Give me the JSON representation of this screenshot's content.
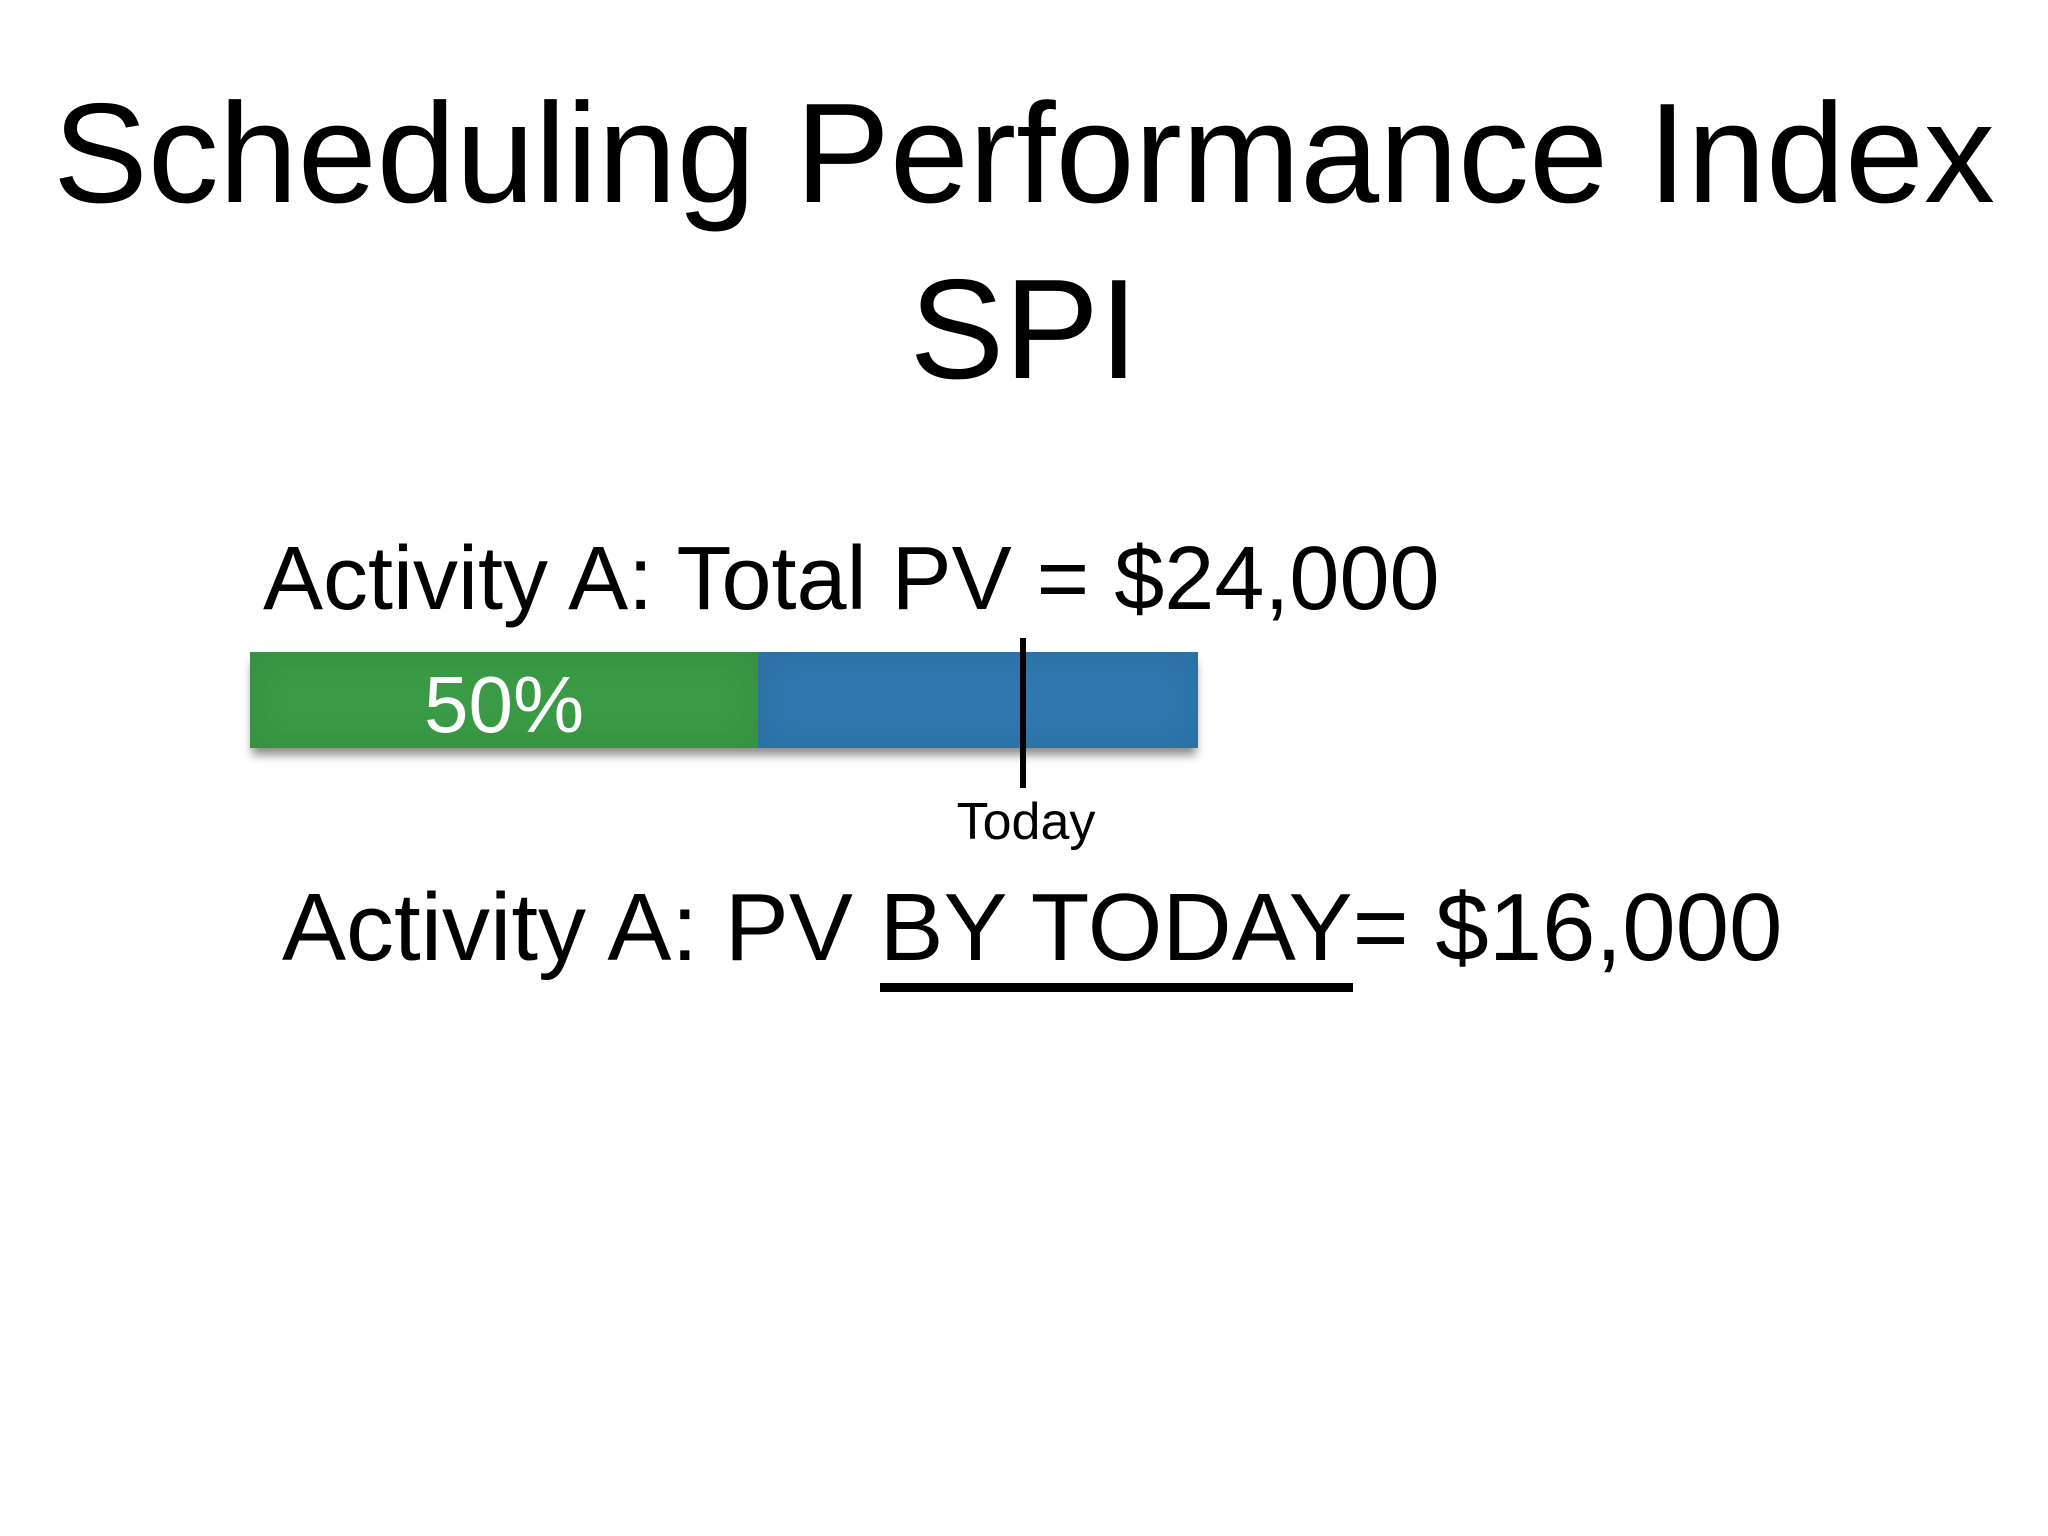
{
  "slide": {
    "title_line1": "Scheduling Performance Index",
    "title_line2": "SPI",
    "total_pv_label": "Activity A: Total PV = $24,000",
    "progress_label": "50%",
    "today_label": "Today",
    "pv_by_today": {
      "before": "Activity A: PV ",
      "underlined": "BY TODAY",
      "after": "= $16,000"
    },
    "colors": {
      "complete_green": "#3a9a45",
      "remaining_blue": "#2f77ae",
      "marker_line": "#000000"
    }
  },
  "chart_data": {
    "type": "bar",
    "description": "Horizontal progress bar for Activity A showing percent complete versus planned value by today",
    "categories": [
      "Activity A"
    ],
    "series": [
      {
        "name": "Complete (green)",
        "values": [
          50
        ],
        "unit": "%"
      },
      {
        "name": "Remaining (blue)",
        "values": [
          50
        ],
        "unit": "%"
      }
    ],
    "annotations": {
      "total_pv_usd": 24000,
      "pv_by_today_usd": 16000,
      "percent_complete_label": "50%",
      "today_marker_label": "Today"
    },
    "legend_position": "none",
    "grid": false
  }
}
